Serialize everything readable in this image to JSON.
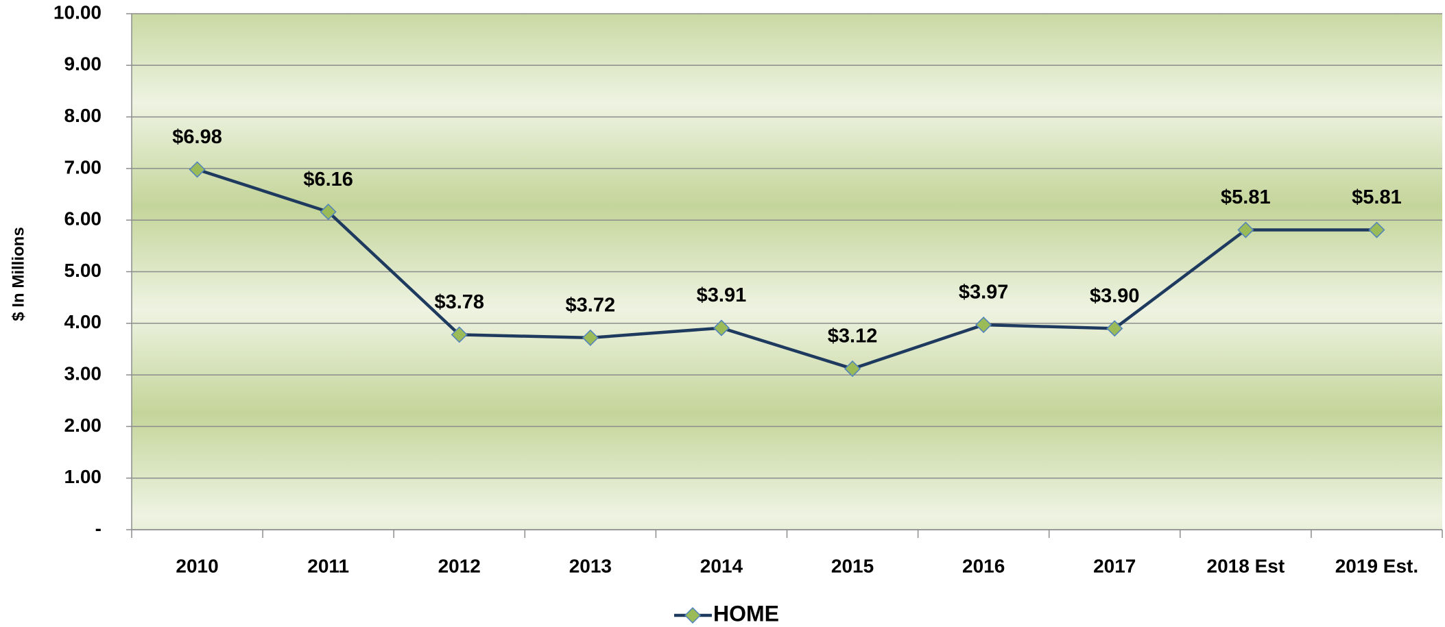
{
  "chart_data": {
    "type": "line",
    "ylabel": "$ In Millions",
    "categories": [
      "2010",
      "2011",
      "2012",
      "2013",
      "2014",
      "2015",
      "2016",
      "2017",
      "2018 Est",
      "2019 Est."
    ],
    "series": [
      {
        "name": "HOME",
        "color": "#1f3a5f",
        "marker_color": "#9bbb59",
        "values": [
          6.98,
          6.16,
          3.78,
          3.72,
          3.91,
          3.12,
          3.97,
          3.9,
          5.81,
          5.81
        ],
        "value_labels": [
          "$6.98",
          "$6.16",
          "$3.78",
          "$3.72",
          "$3.91",
          "$3.12",
          "$3.97",
          "$3.90",
          "$5.81",
          "$5.81"
        ]
      }
    ],
    "ylim": [
      0,
      10
    ],
    "yticks": [
      {
        "value": 0,
        "label": "-"
      },
      {
        "value": 1,
        "label": "1.00"
      },
      {
        "value": 2,
        "label": "2.00"
      },
      {
        "value": 3,
        "label": "3.00"
      },
      {
        "value": 4,
        "label": "4.00"
      },
      {
        "value": 5,
        "label": "5.00"
      },
      {
        "value": 6,
        "label": "6.00"
      },
      {
        "value": 7,
        "label": "7.00"
      },
      {
        "value": 8,
        "label": "8.00"
      },
      {
        "value": 9,
        "label": "9.00"
      },
      {
        "value": 10,
        "label": "10.00"
      }
    ],
    "grid": true,
    "legend": "bottom"
  }
}
